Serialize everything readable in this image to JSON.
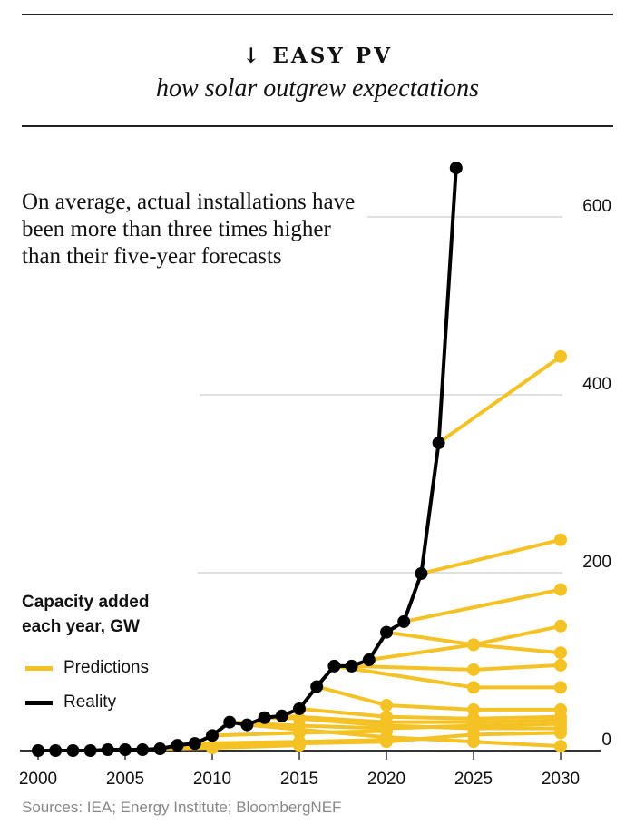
{
  "header": {
    "icon": "arrow-down-icon",
    "arrow": "↓",
    "title": "EASY PV",
    "subtitle": "how solar outgrew expectations"
  },
  "annotation": "On average, actual installations have been more than three times higher than their five-year forecasts",
  "legend": {
    "title_line1": "Capacity added",
    "title_line2": "each year, GW",
    "items": [
      {
        "label": "Predictions",
        "color": "#F5C226"
      },
      {
        "label": "Reality",
        "color": "#000000"
      }
    ]
  },
  "source": "Sources: IEA; Energy Institute; BloombergNEF",
  "chart_data": {
    "type": "line",
    "ylabel": "Capacity added each year, GW",
    "xlim": [
      2000,
      2030
    ],
    "ylim": [
      0,
      660
    ],
    "x_ticks": [
      2000,
      2005,
      2010,
      2015,
      2020,
      2025,
      2030
    ],
    "y_ticks": [
      0,
      200,
      400,
      600
    ],
    "grid": "horizontal",
    "legend_position": "left",
    "colors": {
      "predictions": "#F5C226",
      "reality": "#000000"
    },
    "reality": {
      "name": "Reality",
      "x": [
        2000,
        2001,
        2002,
        2003,
        2004,
        2005,
        2006,
        2007,
        2008,
        2009,
        2010,
        2011,
        2012,
        2013,
        2014,
        2015,
        2016,
        2017,
        2018,
        2019,
        2020,
        2021,
        2022,
        2023,
        2024
      ],
      "y": [
        0,
        0,
        0,
        0,
        1,
        1,
        1,
        2,
        6,
        8,
        17,
        32,
        29,
        37,
        39,
        47,
        72,
        95,
        95,
        102,
        133,
        145,
        199,
        346,
        655
      ]
    },
    "predictions": [
      {
        "x": [
          2007,
          2010,
          2015
        ],
        "y": [
          2,
          3,
          6
        ]
      },
      {
        "x": [
          2008,
          2015,
          2020,
          2025,
          2030
        ],
        "y": [
          6,
          8,
          10,
          18,
          20
        ]
      },
      {
        "x": [
          2009,
          2015,
          2020
        ],
        "y": [
          8,
          10,
          12
        ]
      },
      {
        "x": [
          2010,
          2015,
          2020
        ],
        "y": [
          17,
          20,
          22
        ]
      },
      {
        "x": [
          2011,
          2015,
          2020,
          2025,
          2030
        ],
        "y": [
          32,
          28,
          25,
          28,
          30
        ]
      },
      {
        "x": [
          2012,
          2020,
          2025,
          2030
        ],
        "y": [
          29,
          15,
          10,
          5
        ]
      },
      {
        "x": [
          2013,
          2015,
          2020,
          2025,
          2030
        ],
        "y": [
          37,
          36,
          28,
          25,
          25
        ]
      },
      {
        "x": [
          2014,
          2020,
          2025,
          2030
        ],
        "y": [
          39,
          32,
          32,
          34
        ]
      },
      {
        "x": [
          2015,
          2020,
          2025,
          2030
        ],
        "y": [
          47,
          38,
          36,
          38
        ]
      },
      {
        "x": [
          2016,
          2020,
          2025,
          2030
        ],
        "y": [
          72,
          51,
          46,
          46
        ]
      },
      {
        "x": [
          2017,
          2025,
          2030
        ],
        "y": [
          95,
          71,
          71
        ]
      },
      {
        "x": [
          2018,
          2025,
          2030
        ],
        "y": [
          95,
          91,
          96
        ]
      },
      {
        "x": [
          2019,
          2025,
          2030
        ],
        "y": [
          102,
          119,
          140
        ]
      },
      {
        "x": [
          2020,
          2025,
          2030
        ],
        "y": [
          133,
          119,
          110
        ]
      },
      {
        "x": [
          2021,
          2030
        ],
        "y": [
          145,
          181
        ]
      },
      {
        "x": [
          2022,
          2030
        ],
        "y": [
          199,
          237
        ]
      },
      {
        "x": [
          2023,
          2030
        ],
        "y": [
          346,
          443
        ]
      }
    ]
  }
}
